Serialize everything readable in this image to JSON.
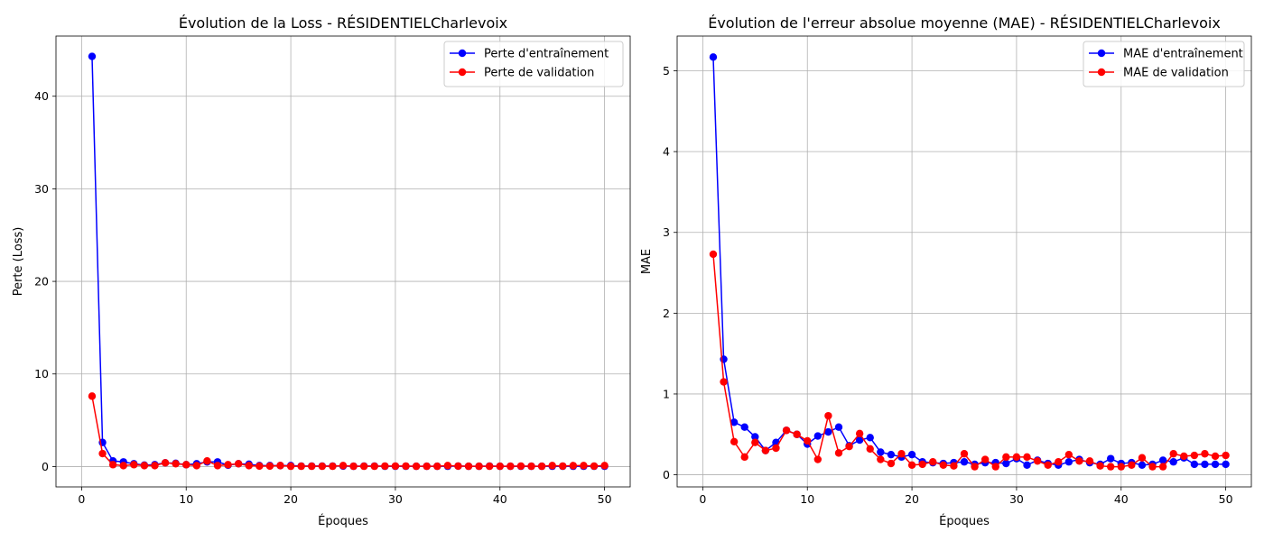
{
  "chart_data": [
    {
      "type": "line",
      "title": "Évolution de la Loss - RÉSIDENTIELCharlevoix",
      "xlabel": "Époques",
      "ylabel": "Perte (Loss)",
      "xlim": [
        -2.45,
        52.45
      ],
      "ylim": [
        -2.2,
        46.5
      ],
      "xticks": [
        0,
        10,
        20,
        30,
        40,
        50
      ],
      "yticks": [
        0,
        10,
        20,
        30,
        40
      ],
      "grid": true,
      "legend_position": "top-right",
      "x": [
        1,
        2,
        3,
        4,
        5,
        6,
        7,
        8,
        9,
        10,
        11,
        12,
        13,
        14,
        15,
        16,
        17,
        18,
        19,
        20,
        21,
        22,
        23,
        24,
        25,
        26,
        27,
        28,
        29,
        30,
        31,
        32,
        33,
        34,
        35,
        36,
        37,
        38,
        39,
        40,
        41,
        42,
        43,
        44,
        45,
        46,
        47,
        48,
        49,
        50
      ],
      "series": [
        {
          "name": "Perte d'entraînement",
          "color": "#0000ff",
          "values": [
            44.3,
            2.6,
            0.6,
            0.5,
            0.3,
            0.15,
            0.2,
            0.4,
            0.35,
            0.2,
            0.3,
            0.5,
            0.5,
            0.15,
            0.3,
            0.25,
            0.1,
            0.1,
            0.1,
            0.1,
            0.05,
            0.05,
            0.05,
            0.05,
            0.05,
            0.03,
            0.05,
            0.05,
            0.03,
            0.03,
            0.03,
            0.03,
            0.03,
            0.03,
            0.03,
            0.05,
            0.03,
            0.03,
            0.05,
            0.03,
            0.03,
            0.03,
            0.03,
            0.03,
            0.03,
            0.03,
            0.03,
            0.03,
            0.03,
            0.03
          ]
        },
        {
          "name": "Perte de validation",
          "color": "#ff0000",
          "values": [
            7.6,
            1.4,
            0.2,
            0.1,
            0.2,
            0.1,
            0.1,
            0.4,
            0.3,
            0.2,
            0.1,
            0.6,
            0.1,
            0.2,
            0.3,
            0.1,
            0.05,
            0.05,
            0.1,
            0.03,
            0.03,
            0.03,
            0.03,
            0.03,
            0.1,
            0.03,
            0.03,
            0.03,
            0.05,
            0.05,
            0.05,
            0.03,
            0.03,
            0.03,
            0.1,
            0.05,
            0.03,
            0.03,
            0.03,
            0.03,
            0.03,
            0.05,
            0.03,
            0.03,
            0.1,
            0.05,
            0.1,
            0.1,
            0.05,
            0.1
          ]
        }
      ]
    },
    {
      "type": "line",
      "title": "Évolution de l'erreur absolue moyenne (MAE) - RÉSIDENTIELCharlevoix",
      "xlabel": "Époques",
      "ylabel": "MAE",
      "xlim": [
        -2.45,
        52.45
      ],
      "ylim": [
        -0.15,
        5.43
      ],
      "xticks": [
        0,
        10,
        20,
        30,
        40,
        50
      ],
      "yticks": [
        0,
        1,
        2,
        3,
        4,
        5
      ],
      "grid": true,
      "legend_position": "top-right",
      "x": [
        1,
        2,
        3,
        4,
        5,
        6,
        7,
        8,
        9,
        10,
        11,
        12,
        13,
        14,
        15,
        16,
        17,
        18,
        19,
        20,
        21,
        22,
        23,
        24,
        25,
        26,
        27,
        28,
        29,
        30,
        31,
        32,
        33,
        34,
        35,
        36,
        37,
        38,
        39,
        40,
        41,
        42,
        43,
        44,
        45,
        46,
        47,
        48,
        49,
        50
      ],
      "series": [
        {
          "name": "MAE d'entraînement",
          "color": "#0000ff",
          "values": [
            5.17,
            1.43,
            0.65,
            0.59,
            0.47,
            0.3,
            0.4,
            0.55,
            0.5,
            0.38,
            0.48,
            0.53,
            0.59,
            0.36,
            0.43,
            0.46,
            0.28,
            0.25,
            0.22,
            0.25,
            0.16,
            0.15,
            0.14,
            0.15,
            0.16,
            0.13,
            0.15,
            0.15,
            0.14,
            0.2,
            0.12,
            0.18,
            0.14,
            0.12,
            0.16,
            0.19,
            0.15,
            0.13,
            0.2,
            0.14,
            0.15,
            0.12,
            0.13,
            0.18,
            0.16,
            0.21,
            0.13,
            0.13,
            0.13,
            0.13
          ]
        },
        {
          "name": "MAE de validation",
          "color": "#ff0000",
          "values": [
            2.73,
            1.15,
            0.41,
            0.22,
            0.4,
            0.3,
            0.33,
            0.55,
            0.5,
            0.42,
            0.19,
            0.73,
            0.27,
            0.35,
            0.51,
            0.32,
            0.19,
            0.14,
            0.26,
            0.12,
            0.13,
            0.16,
            0.12,
            0.11,
            0.26,
            0.1,
            0.19,
            0.1,
            0.22,
            0.22,
            0.22,
            0.17,
            0.12,
            0.16,
            0.25,
            0.17,
            0.17,
            0.11,
            0.1,
            0.1,
            0.12,
            0.21,
            0.1,
            0.1,
            0.26,
            0.23,
            0.24,
            0.26,
            0.23,
            0.24
          ]
        }
      ]
    }
  ]
}
